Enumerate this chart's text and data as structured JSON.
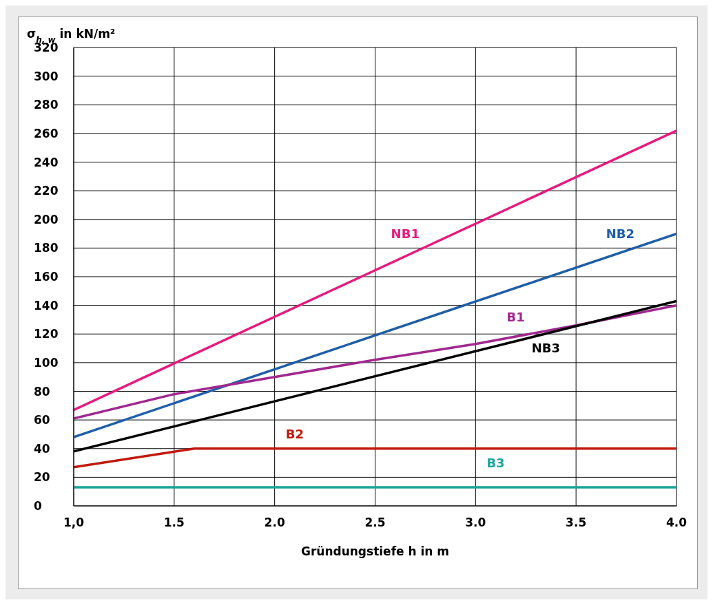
{
  "chart_data": {
    "type": "line",
    "ylabel": "σ$_{h, w}$ in kN/m²",
    "xlabel": "Gründungstiefe h in m",
    "xlim": [
      1.0,
      4.0
    ],
    "xticks": [
      {
        "value": 1.0,
        "label": "1,0"
      },
      {
        "value": 1.5,
        "label": "1.5"
      },
      {
        "value": 2.0,
        "label": "2.0"
      },
      {
        "value": 2.5,
        "label": "2.5"
      },
      {
        "value": 3.0,
        "label": "3.0"
      },
      {
        "value": 3.5,
        "label": "3.5"
      },
      {
        "value": 4.0,
        "label": "4.0"
      }
    ],
    "ylim": [
      0,
      320
    ],
    "yticks": [
      0,
      20,
      40,
      60,
      80,
      100,
      120,
      140,
      160,
      180,
      200,
      220,
      240,
      260,
      280,
      300,
      320
    ],
    "grid": true,
    "series": [
      {
        "name": "NB1",
        "color": "#e8197f",
        "x": [
          1.0,
          4.0
        ],
        "values": [
          67,
          262
        ]
      },
      {
        "name": "NB2",
        "color": "#1f5ea8",
        "x": [
          1.0,
          4.0
        ],
        "values": [
          48,
          190
        ]
      },
      {
        "name": "B1",
        "color": "#a0288e",
        "x": [
          1.0,
          1.5,
          2.0,
          2.5,
          3.0,
          3.5,
          4.0
        ],
        "values": [
          61,
          78,
          90,
          102,
          113,
          126,
          140
        ]
      },
      {
        "name": "NB3",
        "color": "#000000",
        "x": [
          1.0,
          4.0
        ],
        "values": [
          38,
          143
        ]
      },
      {
        "name": "B2",
        "color": "#c0180c",
        "x": [
          1.0,
          1.6,
          4.0
        ],
        "values": [
          27,
          40,
          40
        ]
      },
      {
        "name": "B3",
        "color": "#1aa59a",
        "x": [
          1.0,
          4.0
        ],
        "values": [
          13,
          13
        ]
      }
    ]
  }
}
